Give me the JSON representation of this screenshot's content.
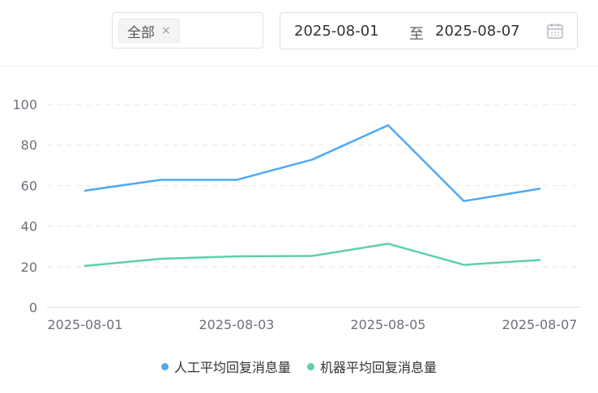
{
  "filters": {
    "channel_tag": "全部",
    "tag_close": "×"
  },
  "date_range": {
    "start": "2025-08-01",
    "separator": "至",
    "end": "2025-08-07",
    "icon": "calendar-icon"
  },
  "chart_data": {
    "type": "line",
    "x": [
      "2025-08-01",
      "2025-08-02",
      "2025-08-03",
      "2025-08-04",
      "2025-08-05",
      "2025-08-06",
      "2025-08-07"
    ],
    "x_tick_labels": [
      "2025-08-01",
      "2025-08-03",
      "2025-08-05",
      "2025-08-07"
    ],
    "y_ticks": [
      0,
      20,
      40,
      60,
      80,
      100
    ],
    "ylim": [
      0,
      100
    ],
    "grid": "horizontal-dashed",
    "legend_position": "bottom",
    "series": [
      {
        "name": "人工平均回复消息量",
        "color": "#4da9f5",
        "values": [
          57.5,
          62.8,
          62.8,
          72.8,
          89.7,
          52.3,
          58.4
        ]
      },
      {
        "name": "机器平均回复消息量",
        "color": "#5dd2a4",
        "values": [
          20.4,
          23.9,
          25.1,
          25.3,
          31.3,
          20.9,
          23.3
        ]
      }
    ]
  }
}
